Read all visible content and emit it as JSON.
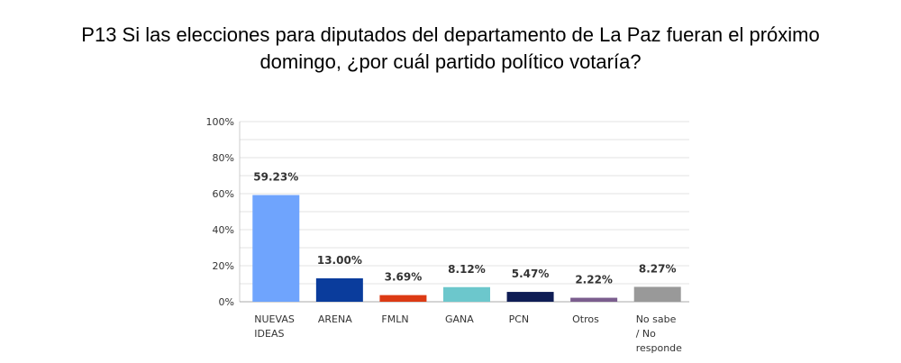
{
  "title_lines": [
    "P13 Si las elecciones para diputados del departamento de La Paz fueran el próximo",
    "domingo, ¿por cuál partido político votaría?"
  ],
  "chart_data": {
    "type": "bar",
    "title": "P13 Si las elecciones para diputados del departamento de La Paz fueran el próximo domingo, ¿por cuál partido político votaría?",
    "categories": [
      "NUEVAS IDEAS",
      "ARENA",
      "FMLN",
      "GANA",
      "PCN",
      "Otros",
      "No sabe / No responde"
    ],
    "category_lines": [
      [
        "NUEVAS",
        "IDEAS"
      ],
      [
        "ARENA"
      ],
      [
        "FMLN"
      ],
      [
        "GANA"
      ],
      [
        "PCN"
      ],
      [
        "Otros"
      ],
      [
        "No sabe",
        "/ No",
        "responde"
      ]
    ],
    "values": [
      59.23,
      13.0,
      3.69,
      8.12,
      5.47,
      2.22,
      8.27
    ],
    "value_labels": [
      "59.23%",
      "13.00%",
      "3.69%",
      "8.12%",
      "5.47%",
      "2.22%",
      "8.27%"
    ],
    "colors": [
      "#6fa4fd",
      "#0a3c9c",
      "#dc3a14",
      "#6cc7cc",
      "#0f1d55",
      "#7b5d8e",
      "#999999"
    ],
    "ylim": [
      0,
      100
    ],
    "yticks": [
      "0%",
      "20%",
      "40%",
      "60%",
      "80%",
      "100%"
    ],
    "grid": true,
    "xlabel": "",
    "ylabel": ""
  }
}
